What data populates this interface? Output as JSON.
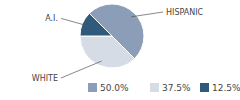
{
  "chart_data": {
    "type": "pie",
    "categories": [
      "HISPANIC",
      "WHITE",
      "A.I."
    ],
    "values": [
      50,
      37.5,
      12.5
    ],
    "value_labels": [
      "50.0%",
      "37.5%",
      "12.5%"
    ],
    "colors": [
      "#8c9db8",
      "#d6dce6",
      "#2f5a7b"
    ]
  }
}
